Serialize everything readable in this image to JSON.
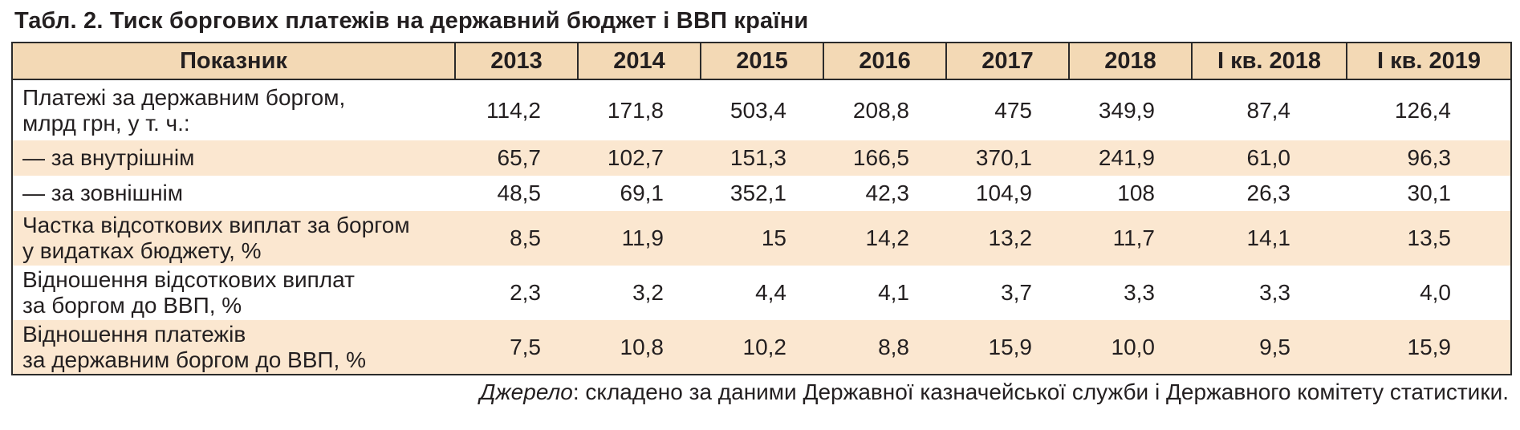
{
  "title": "Табл. 2. Тиск боргових платежів на державний бюджет і ВВП країни",
  "table": {
    "headers": [
      "Показник",
      "2013",
      "2014",
      "2015",
      "2016",
      "2017",
      "2018",
      "І кв. 2018",
      "І кв. 2019"
    ],
    "rows": [
      {
        "indicator_line1": "Платежі за державним боргом,",
        "indicator_line2": "млрд грн, у т. ч.:",
        "values": [
          "114,2",
          "171,8",
          "503,4",
          "208,8",
          "475",
          "349,9",
          "87,4",
          "126,4"
        ]
      },
      {
        "indicator_line1": "— за внутрішнім",
        "indicator_line2": "",
        "values": [
          "65,7",
          "102,7",
          "151,3",
          "166,5",
          "370,1",
          "241,9",
          "61,0",
          "96,3"
        ]
      },
      {
        "indicator_line1": "— за зовнішнім",
        "indicator_line2": "",
        "values": [
          "48,5",
          "69,1",
          "352,1",
          "42,3",
          "104,9",
          "108",
          "26,3",
          "30,1"
        ]
      },
      {
        "indicator_line1": "Частка відсоткових виплат за боргом",
        "indicator_line2": "у видатках бюджету, %",
        "values": [
          "8,5",
          "11,9",
          "15",
          "14,2",
          "13,2",
          "11,7",
          "14,1",
          "13,5"
        ]
      },
      {
        "indicator_line1": "Відношення відсоткових виплат",
        "indicator_line2": "за боргом до ВВП, %",
        "values": [
          "2,3",
          "3,2",
          "4,4",
          "4,1",
          "3,7",
          "3,3",
          "3,3",
          "4,0"
        ]
      },
      {
        "indicator_line1": "Відношення платежів",
        "indicator_line2": "за державним боргом до ВВП, %",
        "values": [
          "7,5",
          "10,8",
          "10,2",
          "8,8",
          "15,9",
          "10,0",
          "9,5",
          "15,9"
        ]
      }
    ]
  },
  "source": {
    "label": "Джерело",
    "text": ": складено за даними Державної казначейської служби і Державного комітету статистики."
  },
  "colors": {
    "header_background": "#f3d9b5",
    "tinted_row_background": "#fbe7d0",
    "border": "#2b2b2b"
  }
}
